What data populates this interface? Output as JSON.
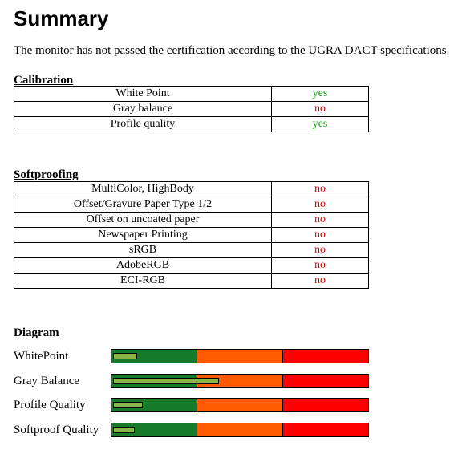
{
  "summary": {
    "title": "Summary",
    "intro": "The monitor has not passed the certification according to the UGRA DACT specifications."
  },
  "calibration": {
    "heading": "Calibration",
    "rows": [
      {
        "label": "White Point",
        "status": "yes"
      },
      {
        "label": "Gray balance",
        "status": "no"
      },
      {
        "label": "Profile quality",
        "status": "yes"
      }
    ]
  },
  "softproofing": {
    "heading": "Softproofing",
    "rows": [
      {
        "label": "MultiColor, HighBody",
        "status": "no"
      },
      {
        "label": "Offset/Gravure Paper Type 1/2",
        "status": "no"
      },
      {
        "label": "Offset on uncoated paper",
        "status": "no"
      },
      {
        "label": "Newspaper Printing",
        "status": "no"
      },
      {
        "label": "sRGB",
        "status": "no"
      },
      {
        "label": "AdobeRGB",
        "status": "no"
      },
      {
        "label": "ECI-RGB",
        "status": "no"
      }
    ]
  },
  "diagram": {
    "heading": "Diagram",
    "colors": {
      "good": "#177a2b",
      "medium": "#ff5a00",
      "bad": "#ff0000",
      "indicator": "#8ab54a"
    },
    "rows": [
      {
        "label": "WhitePoint",
        "level": 0.09
      },
      {
        "label": "Gray Balance",
        "level": 0.41
      },
      {
        "label": "Profile Quality",
        "level": 0.11
      },
      {
        "label": "Softproof Quality",
        "level": 0.08
      }
    ]
  }
}
